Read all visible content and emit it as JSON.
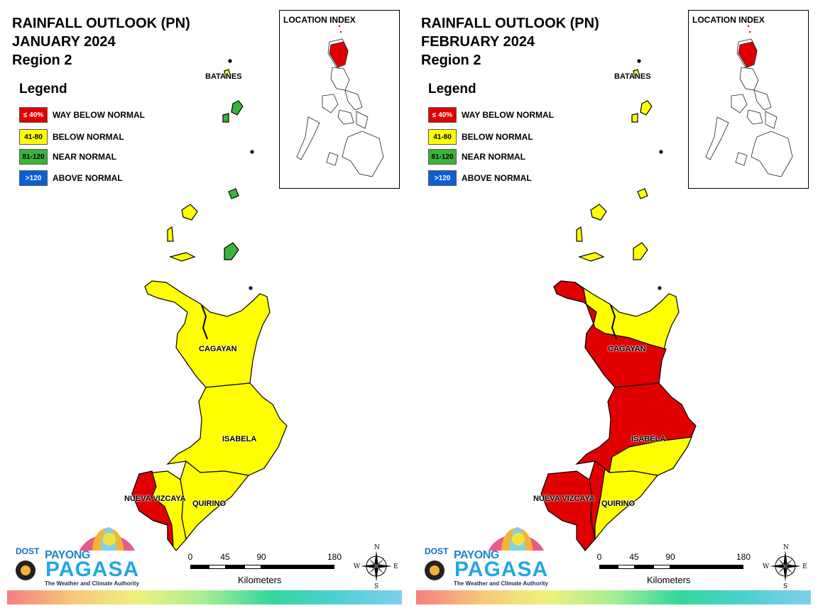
{
  "legend": {
    "title": "Legend",
    "items": [
      {
        "range": "≤ 40%",
        "label": "WAY BELOW NORMAL",
        "color": "#e00000",
        "text_color": "#ffffff"
      },
      {
        "range": "41-80",
        "label": "BELOW NORMAL",
        "color": "#ffff00",
        "text_color": "#000000"
      },
      {
        "range": "81-120",
        "label": "NEAR NORMAL",
        "color": "#3ab53a",
        "text_color": "#000000"
      },
      {
        "range": ">120",
        "label": "ABOVE NORMAL",
        "color": "#0a5fd6",
        "text_color": "#ffffff"
      }
    ]
  },
  "panels": [
    {
      "title_line1": "RAINFALL OUTLOOK (PN)",
      "title_line2": "JANUARY 2024",
      "title_line3": "Region 2",
      "location_index": "LOCATION INDEX",
      "provinces": {
        "batanes": "BATANES",
        "cagayan": "CAGAYAN",
        "isabela": "ISABELA",
        "nueva_vizcaya": "NUEVA VIZCAYA",
        "quirino": "QUIRINO"
      },
      "classes": {
        "batanes": "near normal",
        "cagayan": "below normal",
        "isabela": "below normal",
        "quirino": "below normal",
        "nueva_vizcaya": "way below normal (west) / below normal (east)"
      }
    },
    {
      "title_line1": "RAINFALL OUTLOOK (PN)",
      "title_line2": "FEBRUARY 2024",
      "title_line3": "Region 2",
      "location_index": "LOCATION INDEX",
      "provinces": {
        "batanes": "BATANES",
        "cagayan": "CAGAYAN",
        "isabela": "ISABELA",
        "nueva_vizcaya": "NUEVA VIZCAYA",
        "quirino": "QUIRINO"
      },
      "classes": {
        "batanes": "below normal",
        "cagayan": "way below normal (south) / below normal (north)",
        "isabela": "way below normal (north) / below normal (south)",
        "quirino": "below normal",
        "nueva_vizcaya": "way below normal"
      }
    }
  ],
  "scale": {
    "ticks": [
      "0",
      "45",
      "90",
      "180"
    ],
    "unit": "Kilometers"
  },
  "compass": {
    "n": "N",
    "s": "S",
    "e": "E",
    "w": "W"
  },
  "logo": {
    "dost": "DOST",
    "payong": "PAYONG",
    "pagasa": "PAGASA",
    "tagline": "The Weather and Climate Authority"
  },
  "colors": {
    "red": "#e00000",
    "yellow": "#ffff00",
    "green": "#3ab53a",
    "blue": "#0a5fd6"
  }
}
